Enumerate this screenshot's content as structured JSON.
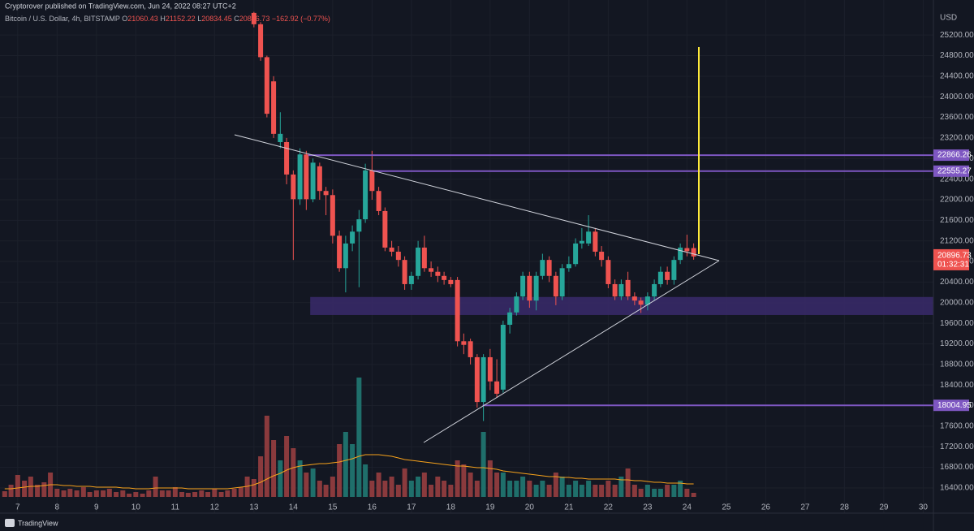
{
  "header": "Cryptorover published on TradingView.com, Jun 24, 2022 08:27 UTC+2",
  "footer": "TradingView",
  "chart_data": {
    "type": "candlestick",
    "symbol": "Bitcoin / U.S. Dollar, 4h, BITSTAMP",
    "ohlc_letters": [
      "O",
      "H",
      "L",
      "C"
    ],
    "change": "−162.92 (−0.77%)",
    "currency": "USD",
    "countdown": "01:32:31",
    "up_color": "#26a69a",
    "down_color": "#ef5350",
    "volume_up_color": "#1f6f6b",
    "volume_down_color": "#8a3a3d",
    "volume_ma_color": "#f7a21b",
    "level_color": "#7e57c2",
    "zone_color": "#3a2a6b",
    "x": [
      6.67,
      6.83,
      7,
      7.17,
      7.33,
      7.5,
      7.67,
      7.83,
      8,
      8.17,
      8.33,
      8.5,
      8.67,
      8.83,
      9,
      9.17,
      9.33,
      9.5,
      9.67,
      9.83,
      10,
      10.17,
      10.33,
      10.5,
      10.67,
      10.83,
      11,
      11.17,
      11.33,
      11.5,
      11.67,
      11.83,
      12,
      12.17,
      12.33,
      12.5,
      12.67,
      12.83,
      13,
      13.17,
      13.33,
      13.5,
      13.67,
      13.83,
      14,
      14.17,
      14.33,
      14.5,
      14.67,
      14.83,
      15,
      15.17,
      15.33,
      15.5,
      15.67,
      15.83,
      16,
      16.17,
      16.33,
      16.5,
      16.67,
      16.83,
      17,
      17.17,
      17.33,
      17.5,
      17.67,
      17.83,
      18,
      18.17,
      18.33,
      18.5,
      18.67,
      18.83,
      19,
      19.17,
      19.33,
      19.5,
      19.67,
      19.83,
      20,
      20.17,
      20.33,
      20.5,
      20.67,
      20.83,
      21,
      21.17,
      21.33,
      21.5,
      21.67,
      21.83,
      22,
      22.17,
      22.33,
      22.5,
      22.67,
      22.83,
      23,
      23.17,
      23.33,
      23.5,
      23.67,
      23.83,
      24,
      24.17
    ],
    "open": [
      null,
      null,
      null,
      null,
      null,
      null,
      null,
      null,
      null,
      null,
      null,
      null,
      null,
      null,
      null,
      null,
      null,
      null,
      null,
      null,
      null,
      null,
      null,
      null,
      null,
      null,
      null,
      null,
      null,
      null,
      null,
      null,
      null,
      null,
      null,
      null,
      null,
      null,
      25630,
      25410,
      24770,
      24300,
      23120,
      23120,
      22490,
      22010,
      22880,
      22010,
      22650,
      22170,
      22090,
      21300,
      20670,
      21150,
      21380,
      21620,
      22570,
      22170,
      21780,
      21070,
      20990,
      20830,
      20360,
      20520,
      21070,
      20670,
      20600,
      20520,
      20440,
      20440,
      19250,
      19250,
      18940,
      18070,
      18940,
      18470,
      18310,
      19570,
      19810,
      20120,
      20520,
      20040,
      20520,
      20830,
      20520,
      20120,
      20670,
      20750,
      21150,
      21150,
      21380,
      20990,
      20830,
      20360,
      20120,
      20440,
      20120,
      20040,
      19960,
      20120,
      20360,
      20600,
      20440,
      20830,
      21060,
      21060.43
    ],
    "high": [
      null,
      null,
      null,
      null,
      null,
      null,
      null,
      null,
      null,
      null,
      null,
      null,
      null,
      null,
      null,
      null,
      null,
      null,
      null,
      null,
      null,
      null,
      null,
      null,
      null,
      null,
      null,
      null,
      null,
      null,
      null,
      null,
      null,
      null,
      null,
      null,
      null,
      null,
      25650,
      25450,
      24800,
      24400,
      23700,
      23200,
      22570,
      23000,
      22950,
      22800,
      22720,
      22250,
      22200,
      21400,
      21300,
      21500,
      21800,
      22700,
      22950,
      22250,
      21850,
      21200,
      21100,
      20900,
      20600,
      21200,
      21300,
      20800,
      20700,
      20600,
      20500,
      20500,
      19400,
      19300,
      19000,
      19000,
      19100,
      18900,
      19650,
      19900,
      20200,
      20600,
      20600,
      20600,
      20950,
      20900,
      20600,
      20750,
      20900,
      21250,
      21450,
      21700,
      21450,
      21100,
      20900,
      20450,
      20450,
      20600,
      20200,
      20100,
      20200,
      20450,
      20700,
      20700,
      20900,
      21150,
      21320,
      21152.22
    ],
    "low": [
      null,
      null,
      null,
      null,
      null,
      null,
      null,
      null,
      null,
      null,
      null,
      null,
      null,
      null,
      null,
      null,
      null,
      null,
      null,
      null,
      null,
      null,
      null,
      null,
      null,
      null,
      null,
      null,
      null,
      null,
      null,
      null,
      null,
      null,
      null,
      null,
      null,
      null,
      25350,
      24700,
      23600,
      23200,
      23000,
      22300,
      20830,
      21900,
      21800,
      21950,
      22000,
      21700,
      21150,
      20600,
      20200,
      21000,
      20300,
      21550,
      22000,
      21700,
      21000,
      20900,
      20700,
      20250,
      20250,
      20450,
      20600,
      20500,
      20400,
      20350,
      20300,
      19150,
      19000,
      18800,
      17960,
      17700,
      18300,
      18150,
      18250,
      19400,
      19750,
      20050,
      19900,
      19850,
      20450,
      20400,
      19950,
      20050,
      20600,
      20700,
      21050,
      21100,
      20900,
      20700,
      20280,
      20050,
      20050,
      20050,
      19950,
      19800,
      19850,
      20050,
      20300,
      20350,
      20350,
      20750,
      20900,
      20834.45
    ],
    "close": [
      null,
      null,
      null,
      null,
      null,
      null,
      null,
      null,
      null,
      null,
      null,
      null,
      null,
      null,
      null,
      null,
      null,
      null,
      null,
      null,
      null,
      null,
      null,
      null,
      null,
      null,
      null,
      null,
      null,
      null,
      null,
      null,
      null,
      null,
      null,
      null,
      null,
      null,
      25410,
      24770,
      23670,
      23280,
      23280,
      22490,
      22010,
      22880,
      22010,
      22720,
      22170,
      22090,
      21300,
      20670,
      21150,
      21380,
      21620,
      22570,
      22170,
      21780,
      21070,
      20990,
      20830,
      20360,
      20520,
      21070,
      20670,
      20600,
      20520,
      20440,
      20360,
      19250,
      19180,
      18940,
      18070,
      18940,
      18470,
      18230,
      19570,
      19810,
      20120,
      20520,
      20040,
      20520,
      20830,
      20520,
      20120,
      20670,
      20750,
      21150,
      21200,
      21380,
      20990,
      20830,
      20360,
      20120,
      20360,
      20120,
      20040,
      19960,
      20120,
      20360,
      20600,
      20440,
      20830,
      21070,
      21000,
      20896.73
    ],
    "volume": [
      7,
      15,
      27,
      20,
      25,
      15,
      18,
      30,
      10,
      8,
      10,
      8,
      12,
      6,
      8,
      8,
      10,
      6,
      8,
      4,
      6,
      4,
      8,
      25,
      8,
      8,
      12,
      6,
      5,
      6,
      8,
      6,
      10,
      6,
      8,
      10,
      12,
      25,
      22,
      50,
      100,
      70,
      45,
      75,
      60,
      45,
      30,
      35,
      20,
      15,
      25,
      65,
      80,
      65,
      147,
      40,
      20,
      30,
      20,
      25,
      15,
      35,
      20,
      25,
      30,
      15,
      25,
      20,
      15,
      45,
      40,
      30,
      20,
      80,
      45,
      30,
      30,
      20,
      20,
      25,
      20,
      15,
      20,
      15,
      30,
      25,
      15,
      20,
      15,
      20,
      15,
      15,
      20,
      15,
      25,
      35,
      15,
      10,
      15,
      10,
      10,
      15,
      15,
      20,
      10,
      5
    ],
    "volume_ma": [
      10,
      10,
      11,
      12,
      13,
      13,
      14,
      15,
      15,
      14,
      14,
      13,
      13,
      13,
      12,
      12,
      12,
      12,
      11,
      11,
      10,
      10,
      10,
      11,
      11,
      11,
      11,
      11,
      10,
      10,
      10,
      10,
      10,
      10,
      10,
      11,
      12,
      13,
      15,
      18,
      22,
      26,
      29,
      33,
      36,
      38,
      39,
      40,
      41,
      41,
      42,
      43,
      45,
      47,
      50,
      52,
      52,
      52,
      51,
      50,
      48,
      46,
      45,
      44,
      43,
      42,
      41,
      40,
      39,
      38,
      38,
      37,
      36,
      36,
      35,
      34,
      32,
      31,
      30,
      29,
      28,
      27,
      26,
      25,
      25,
      24,
      24,
      23,
      23,
      22,
      22,
      22,
      22,
      22,
      21,
      21,
      20,
      20,
      19,
      18,
      18,
      17,
      17,
      17,
      16,
      16
    ],
    "vlim": [
      0,
      160
    ],
    "levels": [
      22866.26,
      22555.27,
      18004.95
    ],
    "levels_from": [
      14.38,
      16.03,
      18.81
    ],
    "zone": [
      19760,
      20110
    ],
    "zone_from": 14.43,
    "xlim": [
      6.55,
      30.26
    ],
    "xticks": [
      7,
      8,
      9,
      10,
      11,
      12,
      13,
      14,
      15,
      16,
      17,
      18,
      19,
      20,
      21,
      22,
      23,
      24,
      25,
      26,
      27,
      28,
      29,
      30
    ],
    "ylim": [
      15910,
      25660
    ],
    "yticks": [
      {
        "value": 16400,
        "label": "16400.00"
      },
      {
        "value": 16800,
        "label": "16800.00"
      },
      {
        "value": 17200,
        "label": "17200.00"
      },
      {
        "value": 17600,
        "label": "17600.00"
      },
      {
        "value": 18000,
        "label": "18000.00"
      },
      {
        "value": 18400,
        "label": "18400.00"
      },
      {
        "value": 18800,
        "label": "18800.00"
      },
      {
        "value": 19200,
        "label": "19200.00"
      },
      {
        "value": 19600,
        "label": "19600.00"
      },
      {
        "value": 20000,
        "label": "20000.00"
      },
      {
        "value": 20400,
        "label": "20400.00"
      },
      {
        "value": 20800,
        "label": "20800.00"
      },
      {
        "value": 21200,
        "label": "21200.00"
      },
      {
        "value": 21600,
        "label": "21600.00"
      },
      {
        "value": 22000,
        "label": "22000.00"
      },
      {
        "value": 22400,
        "label": "22400.00"
      },
      {
        "value": 22800,
        "label": "22800.00"
      },
      {
        "value": 23200,
        "label": "23200.00"
      },
      {
        "value": 23600,
        "label": "23600.00"
      },
      {
        "value": 24000,
        "label": "24000.00"
      },
      {
        "value": 24400,
        "label": "24400.00"
      },
      {
        "value": 24800,
        "label": "24800.00"
      },
      {
        "value": 25200,
        "label": "25200.00"
      }
    ],
    "grid": true
  }
}
